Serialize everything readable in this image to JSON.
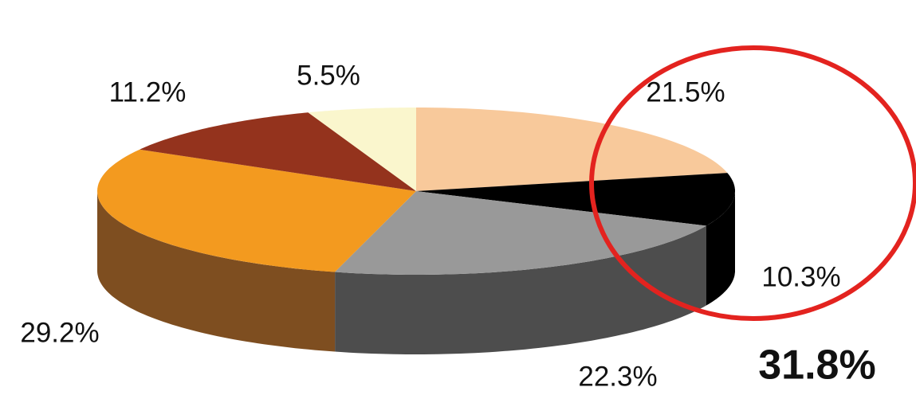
{
  "chart_data": {
    "type": "pie3d",
    "values": [
      21.5,
      10.3,
      22.3,
      29.2,
      11.2,
      5.5
    ],
    "value_labels": [
      "21.5%",
      "10.3%",
      "22.3%",
      "29.2%",
      "11.2%",
      "5.5%"
    ],
    "colors": [
      "#f8c99b",
      "#000000",
      "#999999",
      "#f39a1f",
      "#94331d",
      "#faf6cd"
    ],
    "side_colors": [
      "#c99f76",
      "#000000",
      "#4d4d4d",
      "#7e4e20",
      "#6b2414",
      "#d8d3a8"
    ],
    "annotation": {
      "text": "31.8%",
      "color": "#e3231f"
    }
  }
}
